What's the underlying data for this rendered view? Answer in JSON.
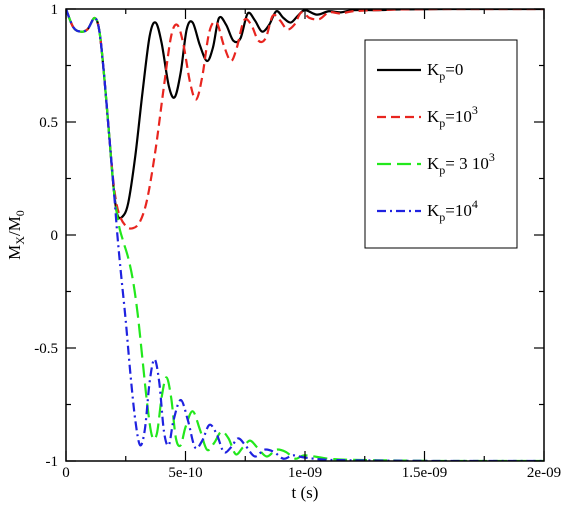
{
  "chart_data": {
    "type": "line",
    "xlabel": "t (s)",
    "ylabel": {
      "main": "M",
      "sub": "X",
      "sep": "/M",
      "sub2": "0"
    },
    "xlim": [
      0,
      2e-09
    ],
    "ylim": [
      -1,
      1
    ],
    "grid": false,
    "legend_position": "top-right",
    "x_ticks": [
      {
        "value": 0,
        "label": "0"
      },
      {
        "value": 5e-10,
        "label": "5e-10"
      },
      {
        "value": 1e-09,
        "label": "1e-09"
      },
      {
        "value": 1.5e-09,
        "label": "1.5e-09"
      },
      {
        "value": 2e-09,
        "label": "2e-09"
      }
    ],
    "y_ticks": [
      {
        "value": -1,
        "label": "-1"
      },
      {
        "value": -0.5,
        "label": "-0.5"
      },
      {
        "value": 0,
        "label": "0"
      },
      {
        "value": 0.5,
        "label": "0.5"
      },
      {
        "value": 1,
        "label": "1"
      }
    ],
    "series": [
      {
        "name": "Kp=0",
        "legend": {
          "base": "K",
          "sub": "p",
          "rest": "=0",
          "sup": ""
        },
        "color": "#000000",
        "dash": "solid",
        "points": [
          [
            0,
            1.0
          ],
          [
            3e-11,
            0.92
          ],
          [
            6e-11,
            0.9
          ],
          [
            9e-11,
            0.91
          ],
          [
            1.2e-10,
            0.96
          ],
          [
            1.4e-10,
            0.9
          ],
          [
            1.6e-10,
            0.7
          ],
          [
            1.8e-10,
            0.45
          ],
          [
            2e-10,
            0.2
          ],
          [
            2.15e-10,
            0.09
          ],
          [
            2.35e-10,
            0.08
          ],
          [
            2.6e-10,
            0.14
          ],
          [
            2.9e-10,
            0.35
          ],
          [
            3.2e-10,
            0.63
          ],
          [
            3.5e-10,
            0.88
          ],
          [
            3.75e-10,
            0.94
          ],
          [
            4e-10,
            0.85
          ],
          [
            4.3e-10,
            0.66
          ],
          [
            4.55e-10,
            0.61
          ],
          [
            4.8e-10,
            0.72
          ],
          [
            5.05e-10,
            0.91
          ],
          [
            5.3e-10,
            0.94
          ],
          [
            5.6e-10,
            0.84
          ],
          [
            5.9e-10,
            0.77
          ],
          [
            6.15e-10,
            0.83
          ],
          [
            6.4e-10,
            0.96
          ],
          [
            6.7e-10,
            0.93
          ],
          [
            7e-10,
            0.86
          ],
          [
            7.3e-10,
            0.87
          ],
          [
            7.6e-10,
            0.98
          ],
          [
            7.9e-10,
            0.95
          ],
          [
            8.2e-10,
            0.9
          ],
          [
            8.5e-10,
            0.93
          ],
          [
            8.8e-10,
            0.99
          ],
          [
            9.1e-10,
            0.96
          ],
          [
            9.4e-10,
            0.94
          ],
          [
            9.7e-10,
            0.97
          ],
          [
            1e-09,
            0.995
          ],
          [
            1.05e-09,
            0.975
          ],
          [
            1.1e-09,
            0.99
          ],
          [
            1.15e-09,
            0.985
          ],
          [
            1.2e-09,
            0.995
          ],
          [
            1.3e-09,
            0.995
          ],
          [
            1.4e-09,
            0.998
          ],
          [
            1.6e-09,
            1.0
          ],
          [
            2e-09,
            1.0
          ]
        ]
      },
      {
        "name": "Kp=10^3",
        "legend": {
          "base": "K",
          "sub": "p",
          "rest": "=10",
          "sup": "3"
        },
        "color": "#e8251f",
        "dash": "dashed",
        "points": [
          [
            0,
            1.0
          ],
          [
            3e-11,
            0.92
          ],
          [
            6e-11,
            0.9
          ],
          [
            9e-11,
            0.91
          ],
          [
            1.2e-10,
            0.96
          ],
          [
            1.4e-10,
            0.9
          ],
          [
            1.6e-10,
            0.7
          ],
          [
            1.8e-10,
            0.45
          ],
          [
            2e-10,
            0.22
          ],
          [
            2.2e-10,
            0.1
          ],
          [
            2.5e-10,
            0.04
          ],
          [
            2.8e-10,
            0.03
          ],
          [
            3.1e-10,
            0.06
          ],
          [
            3.4e-10,
            0.16
          ],
          [
            3.75e-10,
            0.38
          ],
          [
            4.1e-10,
            0.66
          ],
          [
            4.4e-10,
            0.88
          ],
          [
            4.65e-10,
            0.93
          ],
          [
            4.9e-10,
            0.85
          ],
          [
            5.2e-10,
            0.67
          ],
          [
            5.45e-10,
            0.6
          ],
          [
            5.7e-10,
            0.7
          ],
          [
            6e-10,
            0.9
          ],
          [
            6.3e-10,
            0.94
          ],
          [
            6.6e-10,
            0.84
          ],
          [
            6.9e-10,
            0.77
          ],
          [
            7.15e-10,
            0.83
          ],
          [
            7.45e-10,
            0.95
          ],
          [
            7.75e-10,
            0.93
          ],
          [
            8.05e-10,
            0.86
          ],
          [
            8.35e-10,
            0.87
          ],
          [
            8.65e-10,
            0.97
          ],
          [
            8.95e-10,
            0.95
          ],
          [
            9.25e-10,
            0.91
          ],
          [
            9.55e-10,
            0.93
          ],
          [
            9.85e-10,
            0.985
          ],
          [
            1.02e-09,
            0.96
          ],
          [
            1.06e-09,
            0.955
          ],
          [
            1.1e-09,
            0.985
          ],
          [
            1.15e-09,
            0.98
          ],
          [
            1.2e-09,
            0.99
          ],
          [
            1.3e-09,
            0.995
          ],
          [
            1.4e-09,
            0.998
          ],
          [
            1.6e-09,
            1.0
          ],
          [
            2e-09,
            1.0
          ]
        ]
      },
      {
        "name": "Kp=3 10^3",
        "legend": {
          "base": "K",
          "sub": "p",
          "rest": "= 3 10",
          "sup": "3"
        },
        "color": "#22e81c",
        "dash": "longdash",
        "points": [
          [
            0,
            1.0
          ],
          [
            3e-11,
            0.92
          ],
          [
            6e-11,
            0.9
          ],
          [
            9e-11,
            0.91
          ],
          [
            1.2e-10,
            0.96
          ],
          [
            1.4e-10,
            0.9
          ],
          [
            1.6e-10,
            0.7
          ],
          [
            1.8e-10,
            0.45
          ],
          [
            2e-10,
            0.2
          ],
          [
            2.2e-10,
            0.05
          ],
          [
            2.4e-10,
            -0.03
          ],
          [
            2.6e-10,
            -0.1
          ],
          [
            2.8e-10,
            -0.2
          ],
          [
            3e-10,
            -0.35
          ],
          [
            3.2e-10,
            -0.55
          ],
          [
            3.4e-10,
            -0.75
          ],
          [
            3.6e-10,
            -0.89
          ],
          [
            3.8e-10,
            -0.88
          ],
          [
            4e-10,
            -0.72
          ],
          [
            4.2e-10,
            -0.63
          ],
          [
            4.4e-10,
            -0.72
          ],
          [
            4.6e-10,
            -0.9
          ],
          [
            4.8e-10,
            -0.93
          ],
          [
            5e-10,
            -0.85
          ],
          [
            5.3e-10,
            -0.78
          ],
          [
            5.6e-10,
            -0.86
          ],
          [
            5.9e-10,
            -0.95
          ],
          [
            6.2e-10,
            -0.92
          ],
          [
            6.5e-10,
            -0.87
          ],
          [
            6.8e-10,
            -0.9
          ],
          [
            7.1e-10,
            -0.97
          ],
          [
            7.4e-10,
            -0.94
          ],
          [
            7.7e-10,
            -0.91
          ],
          [
            8e-10,
            -0.94
          ],
          [
            8.4e-10,
            -0.98
          ],
          [
            8.8e-10,
            -0.95
          ],
          [
            9.2e-10,
            -0.96
          ],
          [
            9.6e-10,
            -0.99
          ],
          [
            1e-09,
            -0.975
          ],
          [
            1.1e-09,
            -0.99
          ],
          [
            1.2e-09,
            -0.995
          ],
          [
            1.4e-09,
            -0.998
          ],
          [
            1.6e-09,
            -1.0
          ],
          [
            2e-09,
            -1.0
          ]
        ]
      },
      {
        "name": "Kp=10^4",
        "legend": {
          "base": "K",
          "sub": "p",
          "rest": "=10",
          "sup": "4"
        },
        "color": "#1f22e0",
        "dash": "dashdot",
        "points": [
          [
            0,
            1.0
          ],
          [
            3e-11,
            0.92
          ],
          [
            6e-11,
            0.9
          ],
          [
            9e-11,
            0.91
          ],
          [
            1.2e-10,
            0.96
          ],
          [
            1.4e-10,
            0.9
          ],
          [
            1.6e-10,
            0.7
          ],
          [
            1.8e-10,
            0.45
          ],
          [
            2e-10,
            0.2
          ],
          [
            2.15e-10,
            0.0
          ],
          [
            2.3e-10,
            -0.17
          ],
          [
            2.5e-10,
            -0.38
          ],
          [
            2.7e-10,
            -0.62
          ],
          [
            2.9e-10,
            -0.82
          ],
          [
            3.1e-10,
            -0.93
          ],
          [
            3.3e-10,
            -0.86
          ],
          [
            3.5e-10,
            -0.65
          ],
          [
            3.7e-10,
            -0.55
          ],
          [
            3.9e-10,
            -0.65
          ],
          [
            4.1e-10,
            -0.87
          ],
          [
            4.3e-10,
            -0.93
          ],
          [
            4.5e-10,
            -0.82
          ],
          [
            4.8e-10,
            -0.73
          ],
          [
            5.1e-10,
            -0.82
          ],
          [
            5.4e-10,
            -0.94
          ],
          [
            5.7e-10,
            -0.91
          ],
          [
            6e-10,
            -0.84
          ],
          [
            6.3e-10,
            -0.88
          ],
          [
            6.6e-10,
            -0.96
          ],
          [
            6.9e-10,
            -0.94
          ],
          [
            7.2e-10,
            -0.9
          ],
          [
            7.5e-10,
            -0.93
          ],
          [
            7.9e-10,
            -0.98
          ],
          [
            8.3e-10,
            -0.95
          ],
          [
            8.7e-10,
            -0.96
          ],
          [
            9.1e-10,
            -0.99
          ],
          [
            9.5e-10,
            -0.975
          ],
          [
            1e-09,
            -0.985
          ],
          [
            1.1e-09,
            -0.995
          ],
          [
            1.3e-09,
            -0.998
          ],
          [
            1.6e-09,
            -1.0
          ],
          [
            2e-09,
            -1.0
          ]
        ]
      }
    ]
  }
}
